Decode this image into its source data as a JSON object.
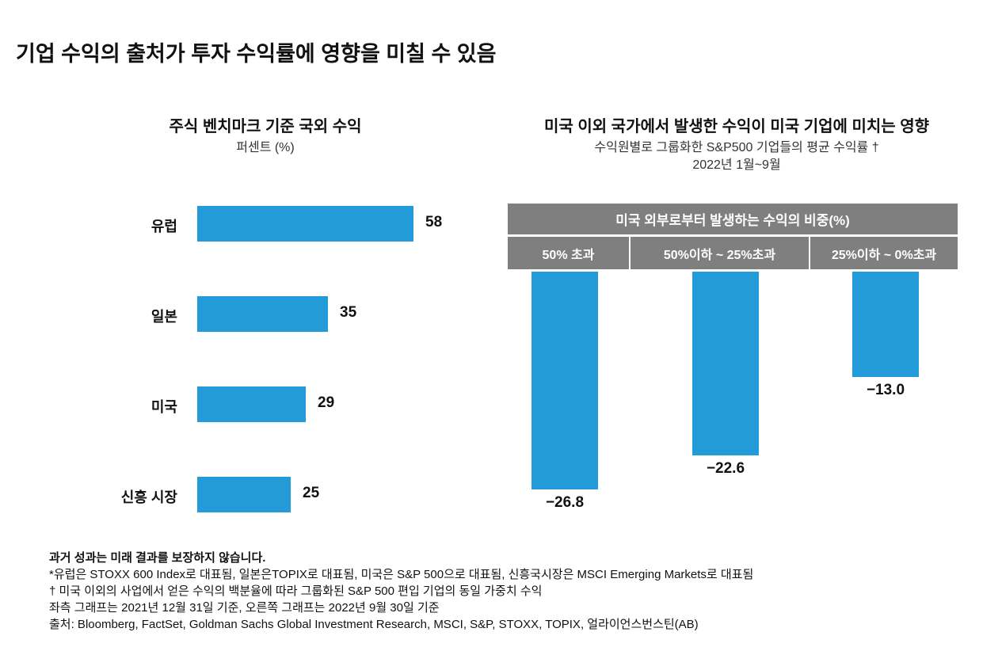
{
  "title": "기업 수익의 출처가 투자 수익률에 영향을 미칠 수 있음",
  "chart_data": [
    {
      "type": "bar",
      "orientation": "horizontal",
      "title": "주식 벤치마크 기준 국외 수익",
      "subtitle": "퍼센트 (%)",
      "categories": [
        "유럽",
        "일본",
        "미국",
        "신흥 시장"
      ],
      "values": [
        58,
        35,
        29,
        25
      ],
      "value_labels": [
        "58",
        "35",
        "29",
        "25"
      ],
      "xlim": [
        0,
        58
      ],
      "grid": false,
      "legend": "none"
    },
    {
      "type": "bar",
      "orientation": "vertical",
      "title": "미국 이외 국가에서 발생한 수익이 미국 기업에 미치는 영향",
      "subtitle": "수익원별로 그룹화한 S&P500 기업들의 평균 수익률 †",
      "subtitle2": "2022년 1월~9월",
      "group_header": "미국 외부로부터 발생하는 수익의 비중(%)",
      "categories": [
        "50% 초과",
        "50%이하 ~ 25%초과",
        "25%이하 ~ 0%초과"
      ],
      "values": [
        -26.8,
        -22.6,
        -13.0
      ],
      "value_labels": [
        "−26.8",
        "−22.6",
        "−13.0"
      ],
      "ylim": [
        -26.8,
        0
      ],
      "grid": false,
      "legend": "none"
    }
  ],
  "footnotes": {
    "disclaimer": "과거 성과는 미래 결과를 보장하지 않습니다.",
    "note1": "*유럽은 STOXX 600 Index로 대표됨, 일본은TOPIX로 대표됨, 미국은 S&P 500으로 대표됨, 신흥국시장은 MSCI Emerging Markets로 대표됨",
    "note2": "† 미국 이외의 사업에서 얻은 수익의 백분율에 따라 그룹화된 S&P 500 편입 기업의 동일 가중치 수익",
    "note3": "좌측 그래프는 2021년 12월 31일 기준, 오른쪽 그래프는 2022년 9월 30일 기준",
    "source": "출처: Bloomberg, FactSet, Goldman Sachs Global Investment Research, MSCI, S&P, STOXX, TOPIX, 얼라이언스번스틴(AB)"
  },
  "colors": {
    "bar": "#239bd8",
    "header": "#7f7f7f"
  }
}
